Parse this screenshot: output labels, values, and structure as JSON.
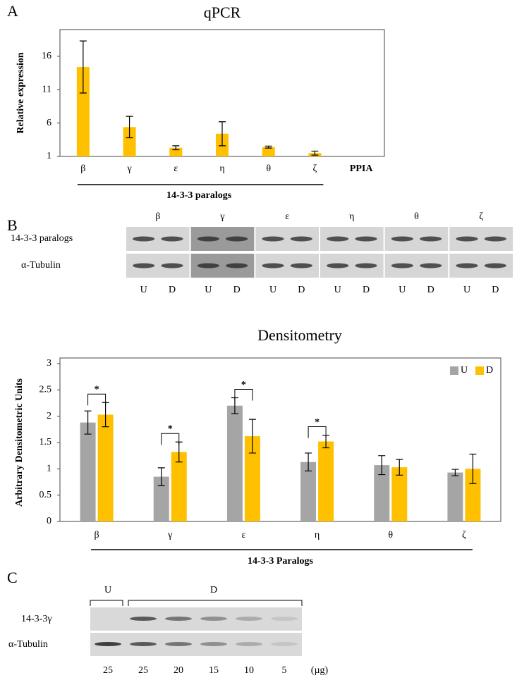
{
  "panels": {
    "a": "A",
    "b": "B",
    "c": "C"
  },
  "chart_data": [
    {
      "type": "bar",
      "title": "qPCR",
      "y_label": "Relative expression",
      "x_label": "14-3-3 paralogs",
      "categories": [
        "β",
        "γ",
        "ε",
        "η",
        "θ",
        "ζ",
        "PPIA"
      ],
      "values": [
        14.4,
        5.4,
        2.3,
        4.4,
        2.4,
        1.5,
        1
      ],
      "errors": [
        3.9,
        1.6,
        0.3,
        1.8,
        0.15,
        0.3,
        null
      ],
      "color": "#ffc000",
      "ylim": [
        1,
        20
      ],
      "yticks": [
        1,
        6,
        11,
        16
      ]
    },
    {
      "type": "bar",
      "title": "Densitometry",
      "y_label": "Arbitrary Densitometric Units",
      "x_label": "14-3-3 Paralogs",
      "categories": [
        "β",
        "γ",
        "ε",
        "η",
        "θ",
        "ζ"
      ],
      "series": [
        {
          "name": "U",
          "color": "#a5a5a5",
          "values": [
            1.88,
            0.85,
            2.2,
            1.13,
            1.07,
            0.93
          ],
          "errors": [
            0.22,
            0.17,
            0.15,
            0.17,
            0.18,
            0.06
          ]
        },
        {
          "name": "D",
          "color": "#ffc000",
          "values": [
            2.03,
            1.32,
            1.62,
            1.52,
            1.03,
            1.0
          ],
          "errors": [
            0.23,
            0.19,
            0.32,
            0.12,
            0.15,
            0.28
          ]
        }
      ],
      "significance": [
        "*",
        "*",
        "*",
        "*",
        null,
        null
      ],
      "legend": "top-right",
      "ylim": [
        0,
        3
      ],
      "yticks": [
        0,
        0.5,
        1,
        1.5,
        2,
        2.5,
        3
      ]
    }
  ],
  "blot_b": {
    "column_labels": [
      "β",
      "γ",
      "ε",
      "η",
      "θ",
      "ζ"
    ],
    "row_labels": [
      "14-3-3 paralogs",
      "α-Tubulin"
    ],
    "lane_labels": [
      "U",
      "D",
      "U",
      "D",
      "U",
      "D",
      "U",
      "D",
      "U",
      "D",
      "U",
      "D"
    ]
  },
  "blot_c": {
    "row_labels": [
      "14-3-3γ",
      "α-Tubulin"
    ],
    "group_labels": [
      "U",
      "D"
    ],
    "lane_labels": [
      "25",
      "25",
      "20",
      "15",
      "10",
      "5",
      "(µg)"
    ]
  }
}
